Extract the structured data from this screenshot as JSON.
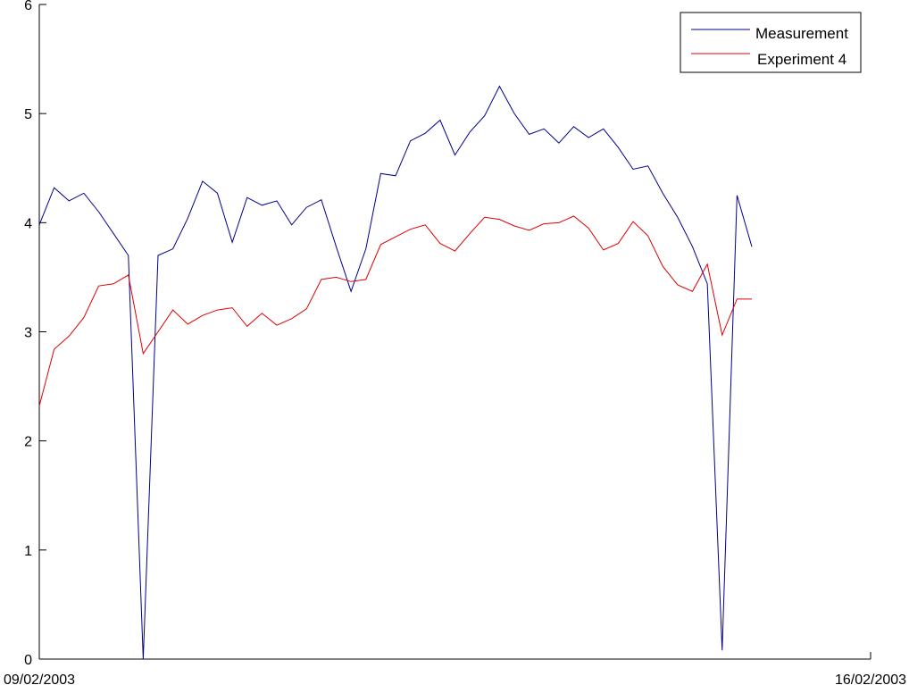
{
  "chart_data": {
    "type": "line",
    "title": "",
    "xlabel": "",
    "ylabel": "",
    "x_tick_labels": [
      "09/02/2003",
      "16/02/2003"
    ],
    "x_range": [
      0,
      56
    ],
    "ylim": [
      0,
      6
    ],
    "y_ticks": [
      0,
      1,
      2,
      3,
      4,
      5,
      6
    ],
    "grid": false,
    "legend_position": "top-right",
    "series": [
      {
        "name": "Measurement",
        "color": "#00008b",
        "x": [
          0,
          1,
          2,
          3,
          4,
          5,
          6,
          7,
          8,
          9,
          10,
          11,
          12,
          13,
          14,
          15,
          16,
          17,
          18,
          19,
          20,
          21,
          22,
          23,
          24,
          25,
          26,
          27,
          28,
          29,
          30,
          31,
          32,
          33,
          34,
          35,
          36,
          37,
          38,
          39,
          40,
          41,
          42,
          43,
          44,
          45,
          46,
          47,
          48
        ],
        "values": [
          3.98,
          4.32,
          4.2,
          4.27,
          4.1,
          3.9,
          3.7,
          0.0,
          3.7,
          3.76,
          4.04,
          4.38,
          4.27,
          3.82,
          4.23,
          4.16,
          4.2,
          3.98,
          4.14,
          4.21,
          3.78,
          3.37,
          3.76,
          4.45,
          4.43,
          4.75,
          4.82,
          4.94,
          4.62,
          4.83,
          4.98,
          5.25,
          5.0,
          4.81,
          4.86,
          4.73,
          4.88,
          4.78,
          4.86,
          4.69,
          4.49,
          4.52,
          4.27,
          4.05,
          3.78,
          3.44,
          0.08,
          4.25,
          3.78
        ]
      },
      {
        "name": "Experiment 4",
        "color": "#e00000",
        "x": [
          0,
          1,
          2,
          3,
          4,
          5,
          6,
          7,
          8,
          9,
          10,
          11,
          12,
          13,
          14,
          15,
          16,
          17,
          18,
          19,
          20,
          21,
          22,
          23,
          24,
          25,
          26,
          27,
          28,
          29,
          30,
          31,
          32,
          33,
          34,
          35,
          36,
          37,
          38,
          39,
          40,
          41,
          42,
          43,
          44,
          45,
          46,
          47,
          48
        ],
        "values": [
          2.32,
          2.84,
          2.96,
          3.13,
          3.42,
          3.44,
          3.52,
          2.8,
          3.0,
          3.2,
          3.07,
          3.15,
          3.2,
          3.22,
          3.05,
          3.17,
          3.06,
          3.12,
          3.21,
          3.48,
          3.5,
          3.46,
          3.48,
          3.8,
          3.87,
          3.94,
          3.98,
          3.81,
          3.74,
          3.9,
          4.05,
          4.03,
          3.97,
          3.93,
          3.99,
          4.0,
          4.06,
          3.95,
          3.75,
          3.81,
          4.01,
          3.88,
          3.6,
          3.43,
          3.37,
          3.62,
          2.97,
          3.3,
          3.3
        ]
      }
    ]
  }
}
